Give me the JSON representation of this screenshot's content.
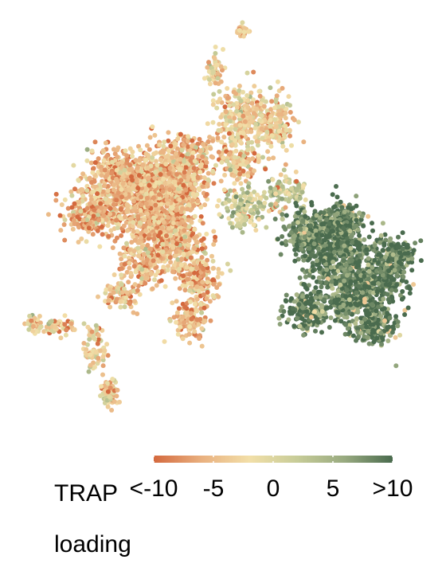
{
  "chart_data": {
    "type": "scatter",
    "title": "",
    "xlabel": "",
    "ylabel": "",
    "axes_visible": false,
    "grid": false,
    "color_variable": "TRAP loading",
    "legend": {
      "title_lines": [
        "TRAP",
        "loading"
      ],
      "placement": "bottom",
      "type": "colorbar",
      "range": [
        -10,
        10
      ],
      "tick_values": [
        -10,
        -5,
        0,
        5,
        10
      ],
      "tick_labels": [
        "<-10",
        "-5",
        "0",
        "5",
        ">10"
      ],
      "colors": [
        "#d4693e",
        "#e9b07f",
        "#f2dfa8",
        "#c7cc98",
        "#98aa80",
        "#4a6b4e"
      ]
    },
    "clusters": [
      {
        "region": "upper-left main cluster",
        "mean_trap_loading": -5
      },
      {
        "region": "upper central arm",
        "mean_trap_loading": -3
      },
      {
        "region": "top small island",
        "mean_trap_loading": -4
      },
      {
        "region": "lower-left strand",
        "mean_trap_loading": -3
      },
      {
        "region": "right cluster",
        "mean_trap_loading": 9
      },
      {
        "region": "bridge between clusters",
        "mean_trap_loading": 2
      }
    ]
  }
}
